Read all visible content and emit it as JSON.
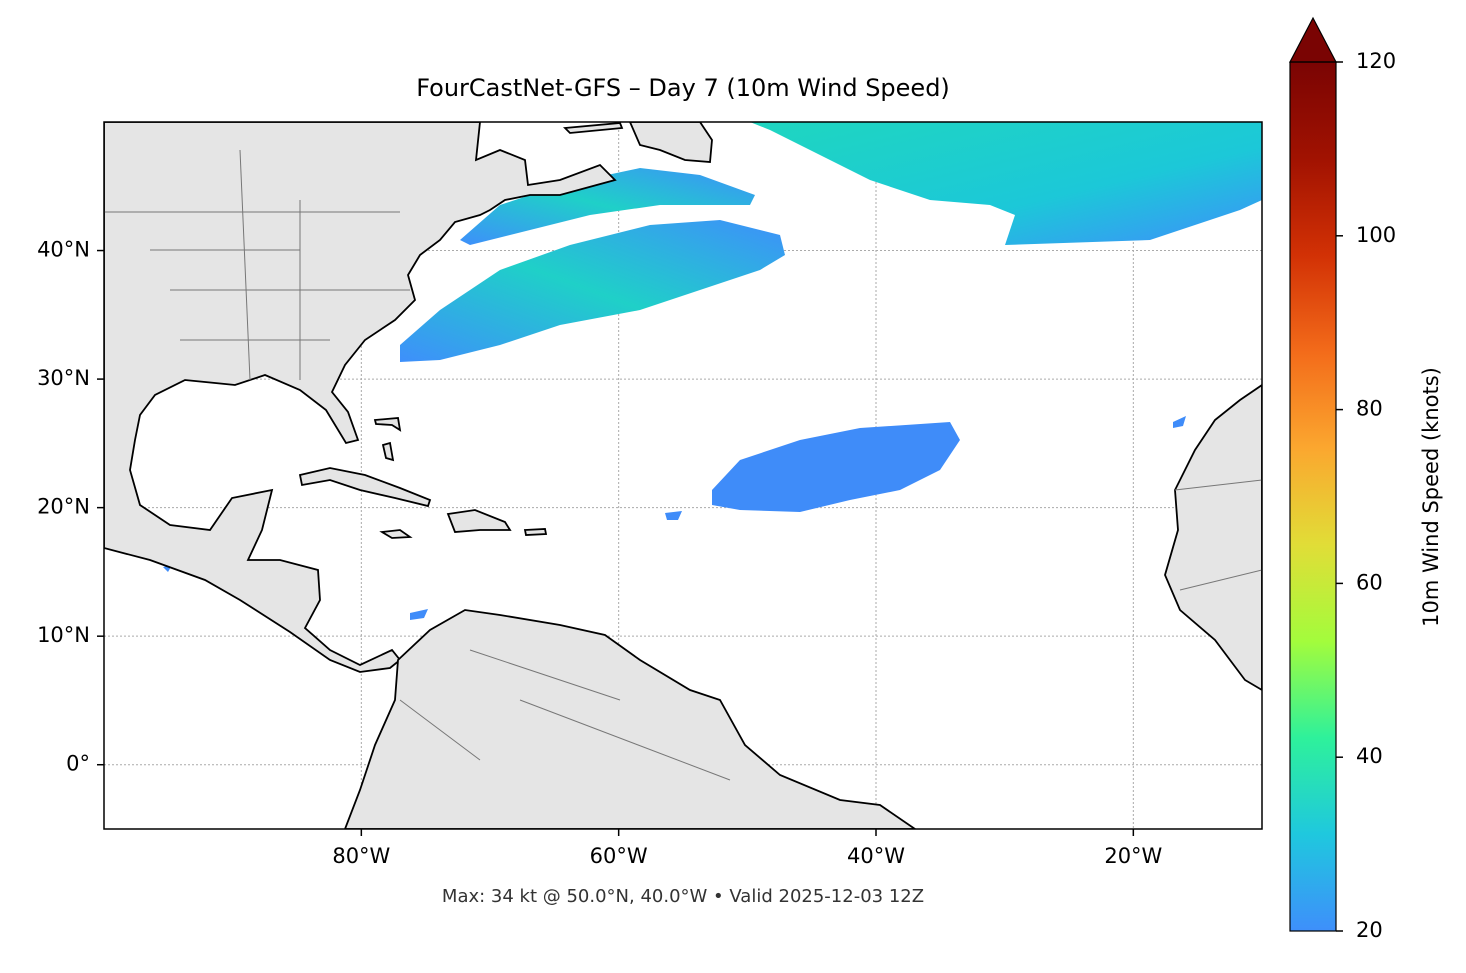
{
  "chart_data": {
    "type": "map",
    "title": "FourCastNet-GFS – Day 7 (10m Wind Speed)",
    "footnote": "Max: 34 kt @ 50.0°N, 40.0°W • Valid 2025-12-03 12Z",
    "xlim": [
      -100,
      -10
    ],
    "ylim": [
      -5,
      50
    ],
    "xticks": [
      {
        "value": -80,
        "label": "80°W"
      },
      {
        "value": -60,
        "label": "60°W"
      },
      {
        "value": -40,
        "label": "40°W"
      },
      {
        "value": -20,
        "label": "20°W"
      }
    ],
    "yticks": [
      {
        "value": 0,
        "label": "0°"
      },
      {
        "value": 10,
        "label": "10°N"
      },
      {
        "value": 20,
        "label": "20°N"
      },
      {
        "value": 30,
        "label": "30°N"
      },
      {
        "value": 40,
        "label": "40°N"
      }
    ],
    "grid": true,
    "colorbar": {
      "label": "10m Wind Speed (knots)",
      "lim": [
        20,
        120
      ],
      "ticks": [
        20,
        40,
        60,
        80,
        100,
        120
      ],
      "extend": "max",
      "colors": [
        "#3e8ffb",
        "#1fc8de",
        "#2ef19b",
        "#a3fc3c",
        "#e1dd37",
        "#fba72f",
        "#f36b1a",
        "#d23105",
        "#a11201",
        "#7a0403"
      ]
    }
  }
}
